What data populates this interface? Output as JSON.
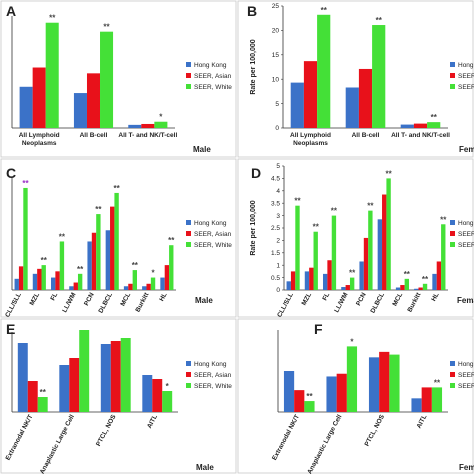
{
  "legend": [
    "Hong Kong",
    "SEER, Asian",
    "SEER, White"
  ],
  "colors": {
    "hk": "#3b72c8",
    "asian": "#e8111a",
    "white": "#44e037",
    "axis": "#333333"
  },
  "chart_data": [
    {
      "panel": "A",
      "type": "bar",
      "sex": "Male",
      "ylabel": "",
      "yticks": [],
      "ylim": [
        0,
        25
      ],
      "categories": [
        "All Lymphoid Neoplasms",
        "All B-cell",
        "All T- and NK/T-cell"
      ],
      "series": [
        {
          "name": "Hong Kong",
          "values": [
            9.2,
            7.8,
            0.7
          ]
        },
        {
          "name": "SEER, Asian",
          "values": [
            13.5,
            12.2,
            0.9
          ]
        },
        {
          "name": "SEER, White",
          "values": [
            23.5,
            21.5,
            1.4
          ]
        }
      ],
      "stars": [
        {
          "cat": 0,
          "text": "**",
          "color": "#444444"
        },
        {
          "cat": 1,
          "text": "**",
          "color": "#444444"
        },
        {
          "cat": 2,
          "text": "*",
          "color": "#444444"
        }
      ],
      "show_legend": true
    },
    {
      "panel": "B",
      "type": "bar",
      "sex": "Fema",
      "ylabel": "Rate per 100,000",
      "yticks": [
        0,
        5,
        10,
        15,
        20,
        25
      ],
      "ylim": [
        0,
        25
      ],
      "categories": [
        "All Lymphoid Neoplasms",
        "All B-cell",
        "All T- and NK/T-cell"
      ],
      "series": [
        {
          "name": "Hong Kong",
          "values": [
            9.3,
            8.3,
            0.7
          ]
        },
        {
          "name": "SEER, Asian",
          "values": [
            13.7,
            12.1,
            0.9
          ]
        },
        {
          "name": "SEER, White",
          "values": [
            23.2,
            21.1,
            1.2
          ]
        }
      ],
      "stars": [
        {
          "cat": 0,
          "text": "**",
          "color": "#444444"
        },
        {
          "cat": 1,
          "text": "**",
          "color": "#444444"
        },
        {
          "cat": 2,
          "text": "**",
          "color": "#444444"
        }
      ],
      "show_legend": true
    },
    {
      "panel": "C",
      "type": "bar",
      "sex": "Male",
      "ylabel": "",
      "yticks": [],
      "ylim": [
        0,
        4.5
      ],
      "categories": [
        "CLL/SLL",
        "MZL",
        "FL",
        "LL/WM",
        "PCN",
        "DLBCL",
        "MCL",
        "Burkitt",
        "HL"
      ],
      "series": [
        {
          "name": "Hong Kong",
          "values": [
            0.45,
            0.65,
            0.5,
            0.15,
            1.95,
            2.4,
            0.15,
            0.15,
            0.5
          ]
        },
        {
          "name": "SEER, Asian",
          "values": [
            0.95,
            0.85,
            0.75,
            0.3,
            2.3,
            3.35,
            0.25,
            0.25,
            1.0
          ]
        },
        {
          "name": "SEER, White",
          "values": [
            4.1,
            1.0,
            1.95,
            0.65,
            3.05,
            3.9,
            0.8,
            0.5,
            1.8
          ]
        }
      ],
      "stars": [
        {
          "cat": 0,
          "text": "**",
          "color": "#9b30c8"
        },
        {
          "cat": 1,
          "text": "**",
          "color": "#444444"
        },
        {
          "cat": 2,
          "text": "**",
          "color": "#444444"
        },
        {
          "cat": 3,
          "text": "**",
          "color": "#444444"
        },
        {
          "cat": 4,
          "text": "**",
          "color": "#444444"
        },
        {
          "cat": 5,
          "text": "**",
          "color": "#444444"
        },
        {
          "cat": 6,
          "text": "**",
          "color": "#444444"
        },
        {
          "cat": 7,
          "text": "*",
          "color": "#444444"
        },
        {
          "cat": 8,
          "text": "**",
          "color": "#444444"
        }
      ],
      "show_legend": true
    },
    {
      "panel": "D",
      "type": "bar",
      "sex": "Fema",
      "ylabel": "Rate per 100,000",
      "yticks": [
        0,
        0.5,
        1,
        1.5,
        2,
        2.5,
        3,
        3.5,
        4,
        4.5,
        5
      ],
      "ylim": [
        0,
        5
      ],
      "categories": [
        "CLL/SLL",
        "MZL",
        "FL",
        "LL/WM",
        "PCN",
        "DLBCL",
        "MCL",
        "Burkitt",
        "HL"
      ],
      "series": [
        {
          "name": "Hong Kong",
          "values": [
            0.35,
            0.75,
            0.65,
            0.12,
            1.15,
            2.85,
            0.1,
            0.05,
            0.65
          ]
        },
        {
          "name": "SEER, Asian",
          "values": [
            0.75,
            0.9,
            1.2,
            0.2,
            2.1,
            3.85,
            0.2,
            0.1,
            1.15
          ]
        },
        {
          "name": "SEER, White",
          "values": [
            3.4,
            2.35,
            3.0,
            0.5,
            3.2,
            4.5,
            0.45,
            0.25,
            2.65
          ]
        }
      ],
      "stars": [
        {
          "cat": 0,
          "text": "**",
          "color": "#444444"
        },
        {
          "cat": 1,
          "text": "**",
          "color": "#444444"
        },
        {
          "cat": 2,
          "text": "**",
          "color": "#444444"
        },
        {
          "cat": 3,
          "text": "**",
          "color": "#444444"
        },
        {
          "cat": 4,
          "text": "**",
          "color": "#444444"
        },
        {
          "cat": 5,
          "text": "**",
          "color": "#444444"
        },
        {
          "cat": 6,
          "text": "**",
          "color": "#444444"
        },
        {
          "cat": 7,
          "text": "**",
          "color": "#444444"
        },
        {
          "cat": 8,
          "text": "**",
          "color": "#444444"
        }
      ],
      "show_legend": true
    },
    {
      "panel": "E",
      "type": "bar",
      "sex": "Male",
      "ylabel": "",
      "yticks": [],
      "ylim": [
        0,
        0.4
      ],
      "categories": [
        "Extranodal NK/T",
        "Anaplastic Large Cell",
        "PTCL, NOS",
        "AITL"
      ],
      "series": [
        {
          "name": "Hong Kong",
          "values": [
            0.345,
            0.235,
            0.34,
            0.185
          ]
        },
        {
          "name": "SEER, Asian",
          "values": [
            0.155,
            0.27,
            0.355,
            0.165
          ]
        },
        {
          "name": "SEER, White",
          "values": [
            0.075,
            0.41,
            0.37,
            0.105
          ]
        }
      ],
      "stars": [
        {
          "cat": 0,
          "text": "**",
          "color": "#444444"
        },
        {
          "cat": 3,
          "text": "*",
          "color": "#444444"
        }
      ],
      "show_legend": true
    },
    {
      "panel": "F",
      "type": "bar",
      "sex": "Fema",
      "ylabel": "",
      "yticks": [],
      "ylim": [
        0,
        0.3
      ],
      "categories": [
        "Extranodal NK/T",
        "Anaplastic Large Cell",
        "PTCL, NOS",
        "AITL"
      ],
      "series": [
        {
          "name": "Hong Kong",
          "values": [
            0.15,
            0.13,
            0.2,
            0.05
          ]
        },
        {
          "name": "SEER, Asian",
          "values": [
            0.08,
            0.14,
            0.22,
            0.09
          ]
        },
        {
          "name": "SEER, White",
          "values": [
            0.04,
            0.24,
            0.21,
            0.09
          ]
        }
      ],
      "stars": [
        {
          "cat": 0,
          "text": "**",
          "color": "#444444"
        },
        {
          "cat": 1,
          "text": "*",
          "color": "#444444"
        },
        {
          "cat": 3,
          "text": "**",
          "color": "#444444"
        }
      ],
      "show_legend": true
    }
  ]
}
